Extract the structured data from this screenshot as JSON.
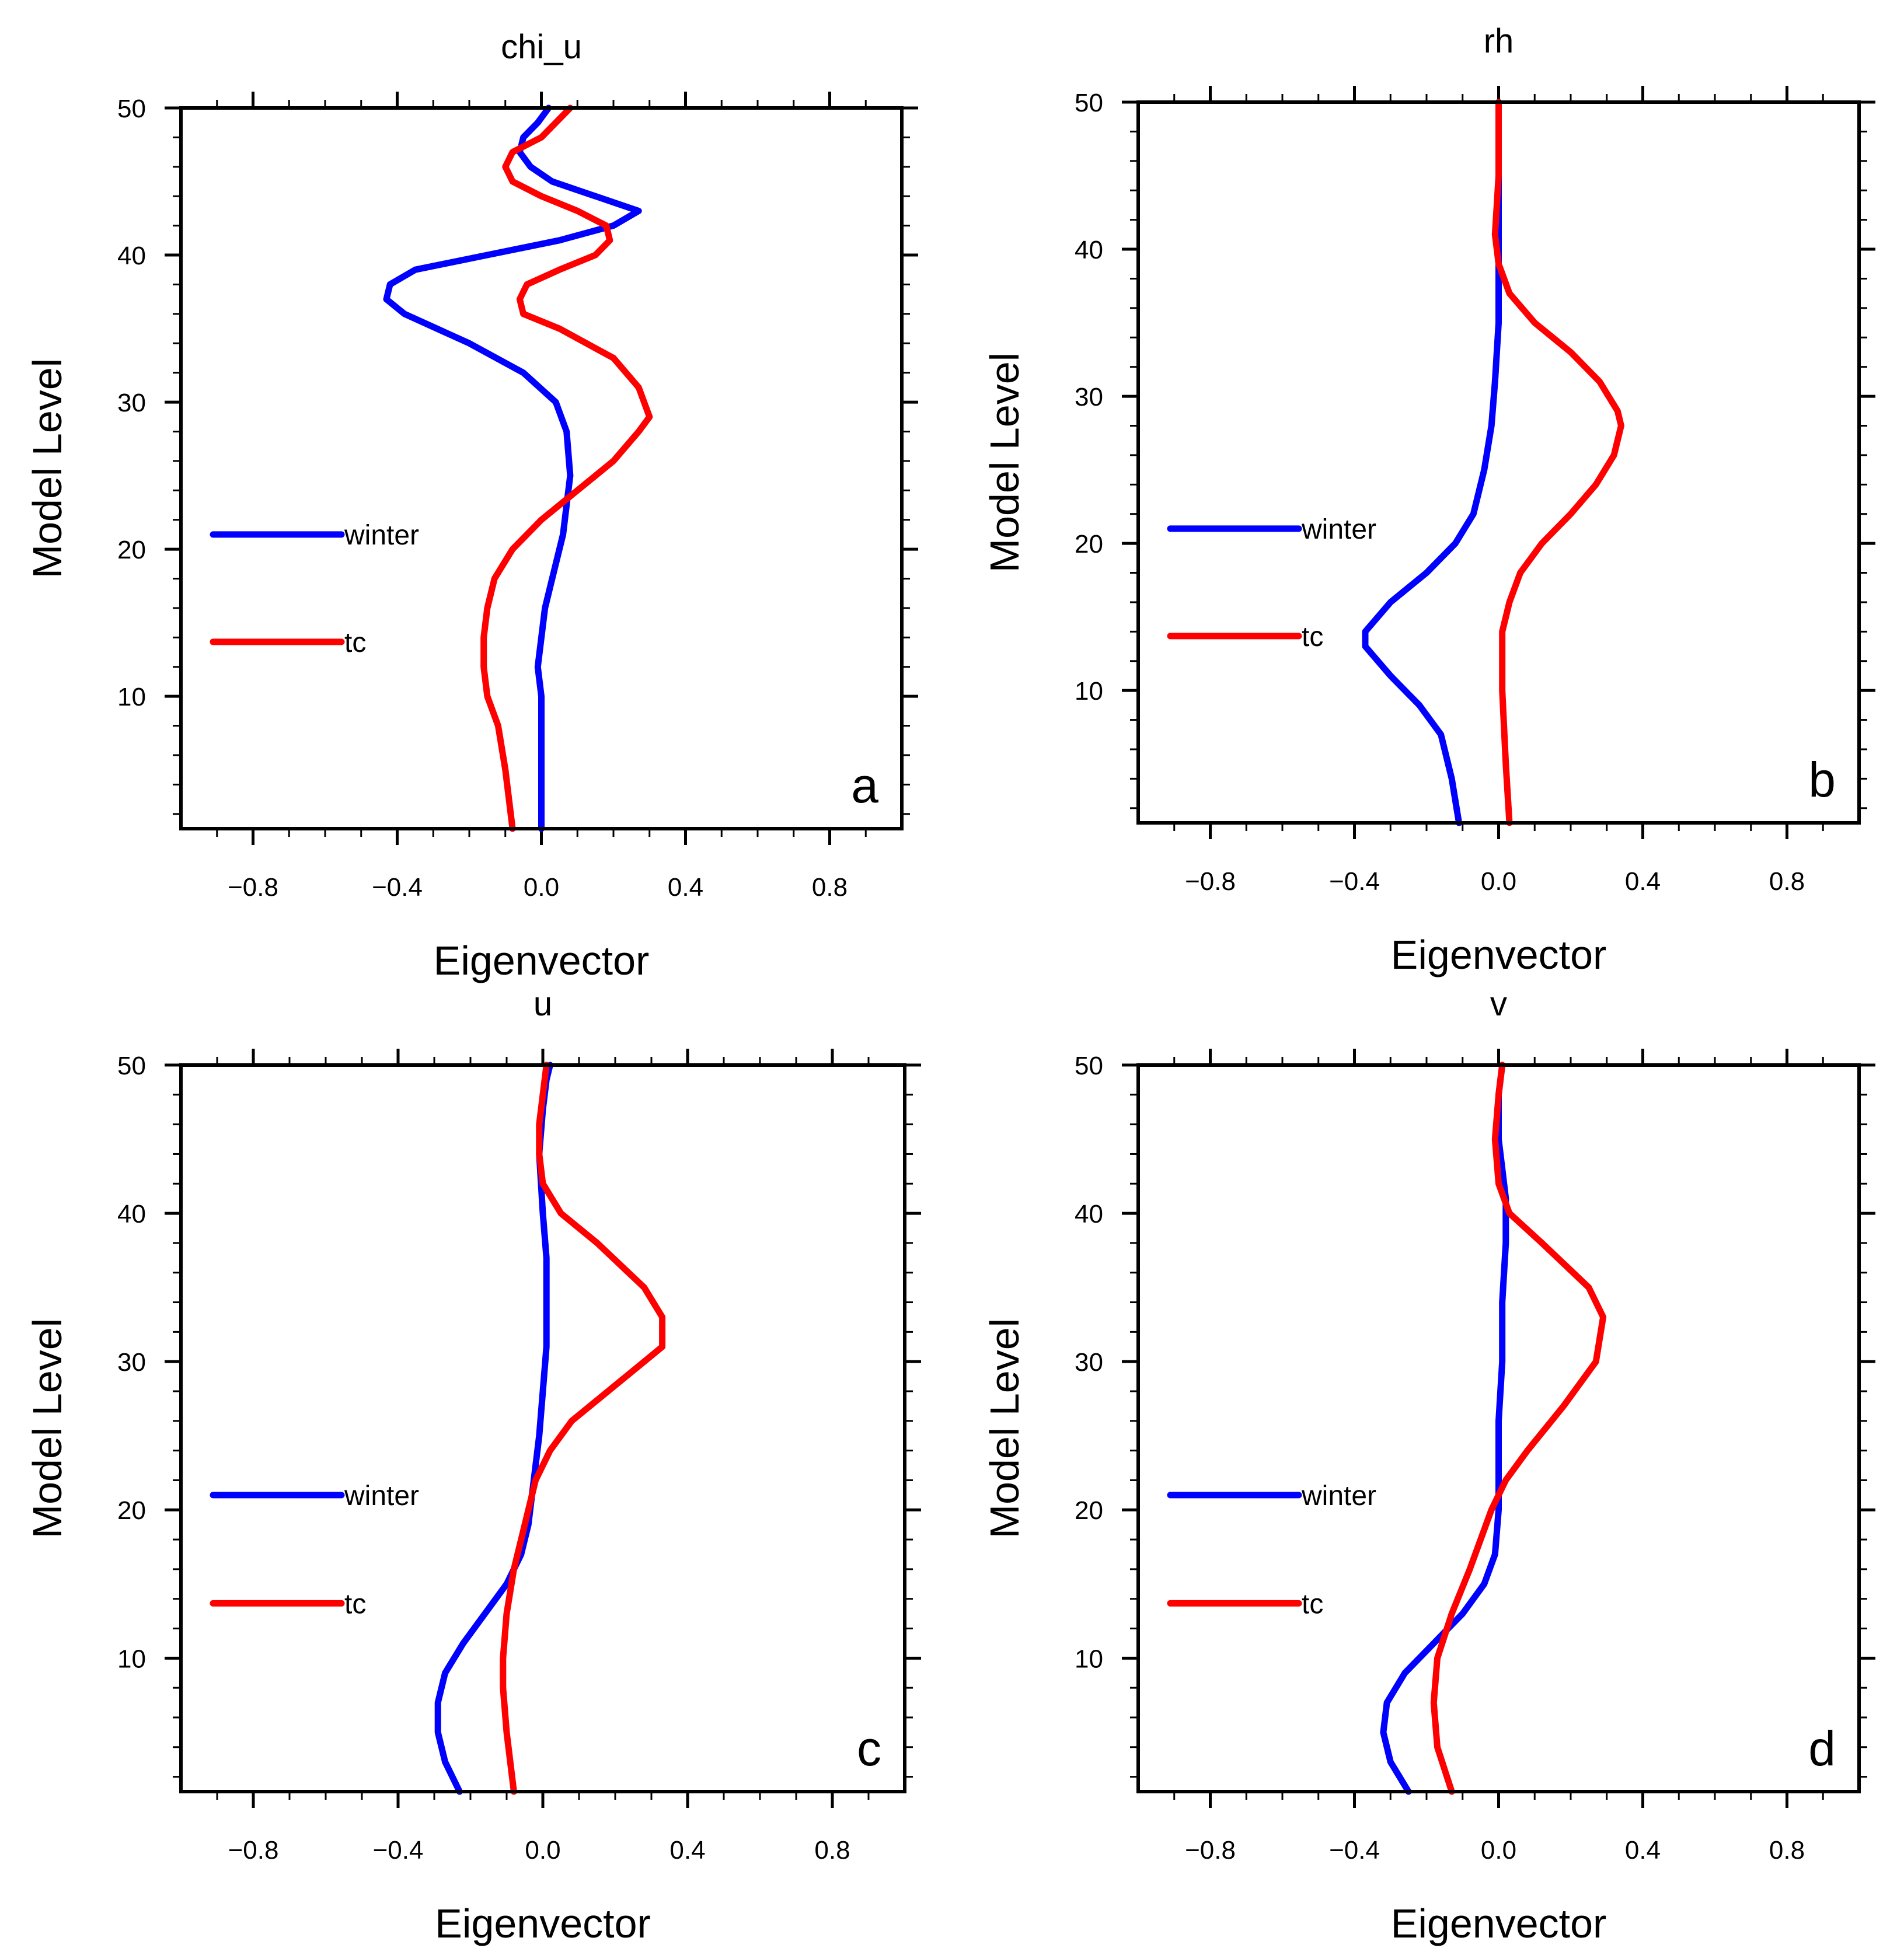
{
  "chart_data": [
    {
      "type": "line",
      "title": "chi_u",
      "panel_label": "a",
      "xlabel": "Eigenvector",
      "ylabel": "Model Level",
      "xlim": [
        -1.0,
        1.0
      ],
      "ylim": [
        1,
        50
      ],
      "xticks": [
        "−0.8",
        "−0.4",
        "0.0",
        "0.4",
        "0.8"
      ],
      "xtick_values": [
        -0.8,
        -0.4,
        0.0,
        0.4,
        0.8
      ],
      "yticks": [
        "10",
        "20",
        "30",
        "40",
        "50"
      ],
      "ytick_values": [
        10,
        20,
        30,
        40,
        50
      ],
      "legend": [
        "winter",
        "tc"
      ],
      "series": [
        {
          "name": "winter",
          "color": "#0000ff",
          "x": [
            0.0,
            0.0,
            0.0,
            0.0,
            -0.01,
            0.0,
            0.01,
            0.03,
            0.05,
            0.06,
            0.07,
            0.08,
            0.07,
            0.04,
            -0.05,
            -0.2,
            -0.38,
            -0.43,
            -0.42,
            -0.35,
            -0.15,
            0.05,
            0.2,
            0.27,
            0.15,
            0.03,
            -0.03,
            -0.06,
            -0.05,
            -0.01,
            0.02
          ],
          "y": [
            1,
            5,
            8,
            10,
            12,
            14,
            16,
            18,
            20,
            21,
            23,
            25,
            28,
            30,
            32,
            34,
            36,
            37,
            38,
            39,
            40,
            41,
            42,
            43,
            44,
            45,
            46,
            47,
            48,
            49,
            50
          ]
        },
        {
          "name": "tc",
          "color": "#ff0000",
          "x": [
            -0.08,
            -0.1,
            -0.12,
            -0.15,
            -0.16,
            -0.16,
            -0.15,
            -0.13,
            -0.08,
            0.0,
            0.1,
            0.2,
            0.27,
            0.3,
            0.27,
            0.2,
            0.05,
            -0.05,
            -0.06,
            -0.04,
            0.05,
            0.15,
            0.19,
            0.18,
            0.1,
            0.0,
            -0.08,
            -0.1,
            -0.08,
            0.0,
            0.08
          ],
          "y": [
            1,
            5,
            8,
            10,
            12,
            14,
            16,
            18,
            20,
            22,
            24,
            26,
            28,
            29,
            31,
            33,
            35,
            36,
            37,
            38,
            39,
            40,
            41,
            42,
            43,
            44,
            45,
            46,
            47,
            48,
            50
          ]
        }
      ]
    },
    {
      "type": "line",
      "title": "rh",
      "panel_label": "b",
      "xlabel": "Eigenvector",
      "ylabel": "Model Level",
      "xlim": [
        -1.0,
        1.0
      ],
      "ylim": [
        1,
        50
      ],
      "xticks": [
        "−0.8",
        "−0.4",
        "0.0",
        "0.4",
        "0.8"
      ],
      "xtick_values": [
        -0.8,
        -0.4,
        0.0,
        0.4,
        0.8
      ],
      "yticks": [
        "10",
        "20",
        "30",
        "40",
        "50"
      ],
      "ytick_values": [
        10,
        20,
        30,
        40,
        50
      ],
      "legend": [
        "winter",
        "tc"
      ],
      "series": [
        {
          "name": "winter",
          "color": "#0000ff",
          "x": [
            -0.11,
            -0.13,
            -0.16,
            -0.22,
            -0.3,
            -0.37,
            -0.37,
            -0.3,
            -0.2,
            -0.12,
            -0.07,
            -0.04,
            -0.02,
            -0.01,
            0.0,
            0.0,
            0.0,
            0.0
          ],
          "y": [
            1,
            4,
            7,
            9,
            11,
            13,
            14,
            16,
            18,
            20,
            22,
            25,
            28,
            31,
            35,
            40,
            45,
            50
          ]
        },
        {
          "name": "tc",
          "color": "#ff0000",
          "x": [
            0.03,
            0.02,
            0.01,
            0.01,
            0.03,
            0.06,
            0.12,
            0.2,
            0.27,
            0.32,
            0.34,
            0.33,
            0.28,
            0.2,
            0.1,
            0.03,
            0.0,
            -0.01,
            0.0,
            0.0
          ],
          "y": [
            1,
            5,
            10,
            14,
            16,
            18,
            20,
            22,
            24,
            26,
            28,
            29,
            31,
            33,
            35,
            37,
            39,
            41,
            45,
            50
          ]
        }
      ]
    },
    {
      "type": "line",
      "title": "u",
      "panel_label": "c",
      "xlabel": "Eigenvector",
      "ylabel": "Model Level",
      "xlim": [
        -1.0,
        1.0
      ],
      "ylim": [
        1,
        50
      ],
      "xticks": [
        "−0.8",
        "−0.4",
        "0.0",
        "0.4",
        "0.8"
      ],
      "xtick_values": [
        -0.8,
        -0.4,
        0.0,
        0.4,
        0.8
      ],
      "yticks": [
        "10",
        "20",
        "30",
        "40",
        "50"
      ],
      "ytick_values": [
        10,
        20,
        30,
        40,
        50
      ],
      "legend": [
        "winter",
        "tc"
      ],
      "series": [
        {
          "name": "winter",
          "color": "#0000ff",
          "x": [
            -0.23,
            -0.27,
            -0.29,
            -0.29,
            -0.27,
            -0.22,
            -0.16,
            -0.1,
            -0.06,
            -0.04,
            -0.03,
            -0.02,
            -0.01,
            0.0,
            0.01,
            0.01,
            0.01,
            0.0,
            -0.01,
            0.0,
            0.01,
            0.02
          ],
          "y": [
            1,
            3,
            5,
            7,
            9,
            11,
            13,
            15,
            17,
            19,
            21,
            23,
            25,
            28,
            31,
            34,
            37,
            40,
            44,
            47,
            49,
            50
          ]
        },
        {
          "name": "tc",
          "color": "#ff0000",
          "x": [
            -0.08,
            -0.1,
            -0.11,
            -0.11,
            -0.1,
            -0.08,
            -0.05,
            -0.02,
            0.02,
            0.08,
            0.18,
            0.28,
            0.33,
            0.33,
            0.28,
            0.15,
            0.05,
            0.0,
            -0.01,
            -0.01,
            0.0,
            0.01
          ],
          "y": [
            1,
            5,
            8,
            10,
            13,
            16,
            19,
            22,
            24,
            26,
            28,
            30,
            31,
            33,
            35,
            38,
            40,
            42,
            44,
            46,
            48,
            50
          ]
        }
      ]
    },
    {
      "type": "line",
      "title": "v",
      "panel_label": "d",
      "xlabel": "Eigenvector",
      "ylabel": "Model Level",
      "xlim": [
        -1.0,
        1.0
      ],
      "ylim": [
        1,
        50
      ],
      "xticks": [
        "−0.8",
        "−0.4",
        "0.0",
        "0.4",
        "0.8"
      ],
      "xtick_values": [
        -0.8,
        -0.4,
        0.0,
        0.4,
        0.8
      ],
      "yticks": [
        "10",
        "20",
        "30",
        "40",
        "50"
      ],
      "ytick_values": [
        10,
        20,
        30,
        40,
        50
      ],
      "legend": [
        "winter",
        "tc"
      ],
      "series": [
        {
          "name": "winter",
          "color": "#0000ff",
          "x": [
            -0.25,
            -0.3,
            -0.32,
            -0.31,
            -0.26,
            -0.18,
            -0.1,
            -0.04,
            -0.01,
            0.0,
            0.0,
            0.0,
            0.01,
            0.01,
            0.02,
            0.02,
            0.01,
            0.0,
            0.0,
            0.01
          ],
          "y": [
            1,
            3,
            5,
            7,
            9,
            11,
            13,
            15,
            17,
            20,
            23,
            26,
            30,
            34,
            38,
            41,
            43,
            45,
            48,
            50
          ]
        },
        {
          "name": "tc",
          "color": "#ff0000",
          "x": [
            -0.13,
            -0.17,
            -0.18,
            -0.17,
            -0.13,
            -0.08,
            -0.05,
            -0.02,
            0.02,
            0.08,
            0.18,
            0.27,
            0.29,
            0.25,
            0.12,
            0.03,
            0.0,
            -0.01,
            0.0,
            0.01
          ],
          "y": [
            1,
            4,
            7,
            10,
            13,
            16,
            18,
            20,
            22,
            24,
            27,
            30,
            33,
            35,
            38,
            40,
            42,
            45,
            48,
            50
          ]
        }
      ]
    }
  ]
}
